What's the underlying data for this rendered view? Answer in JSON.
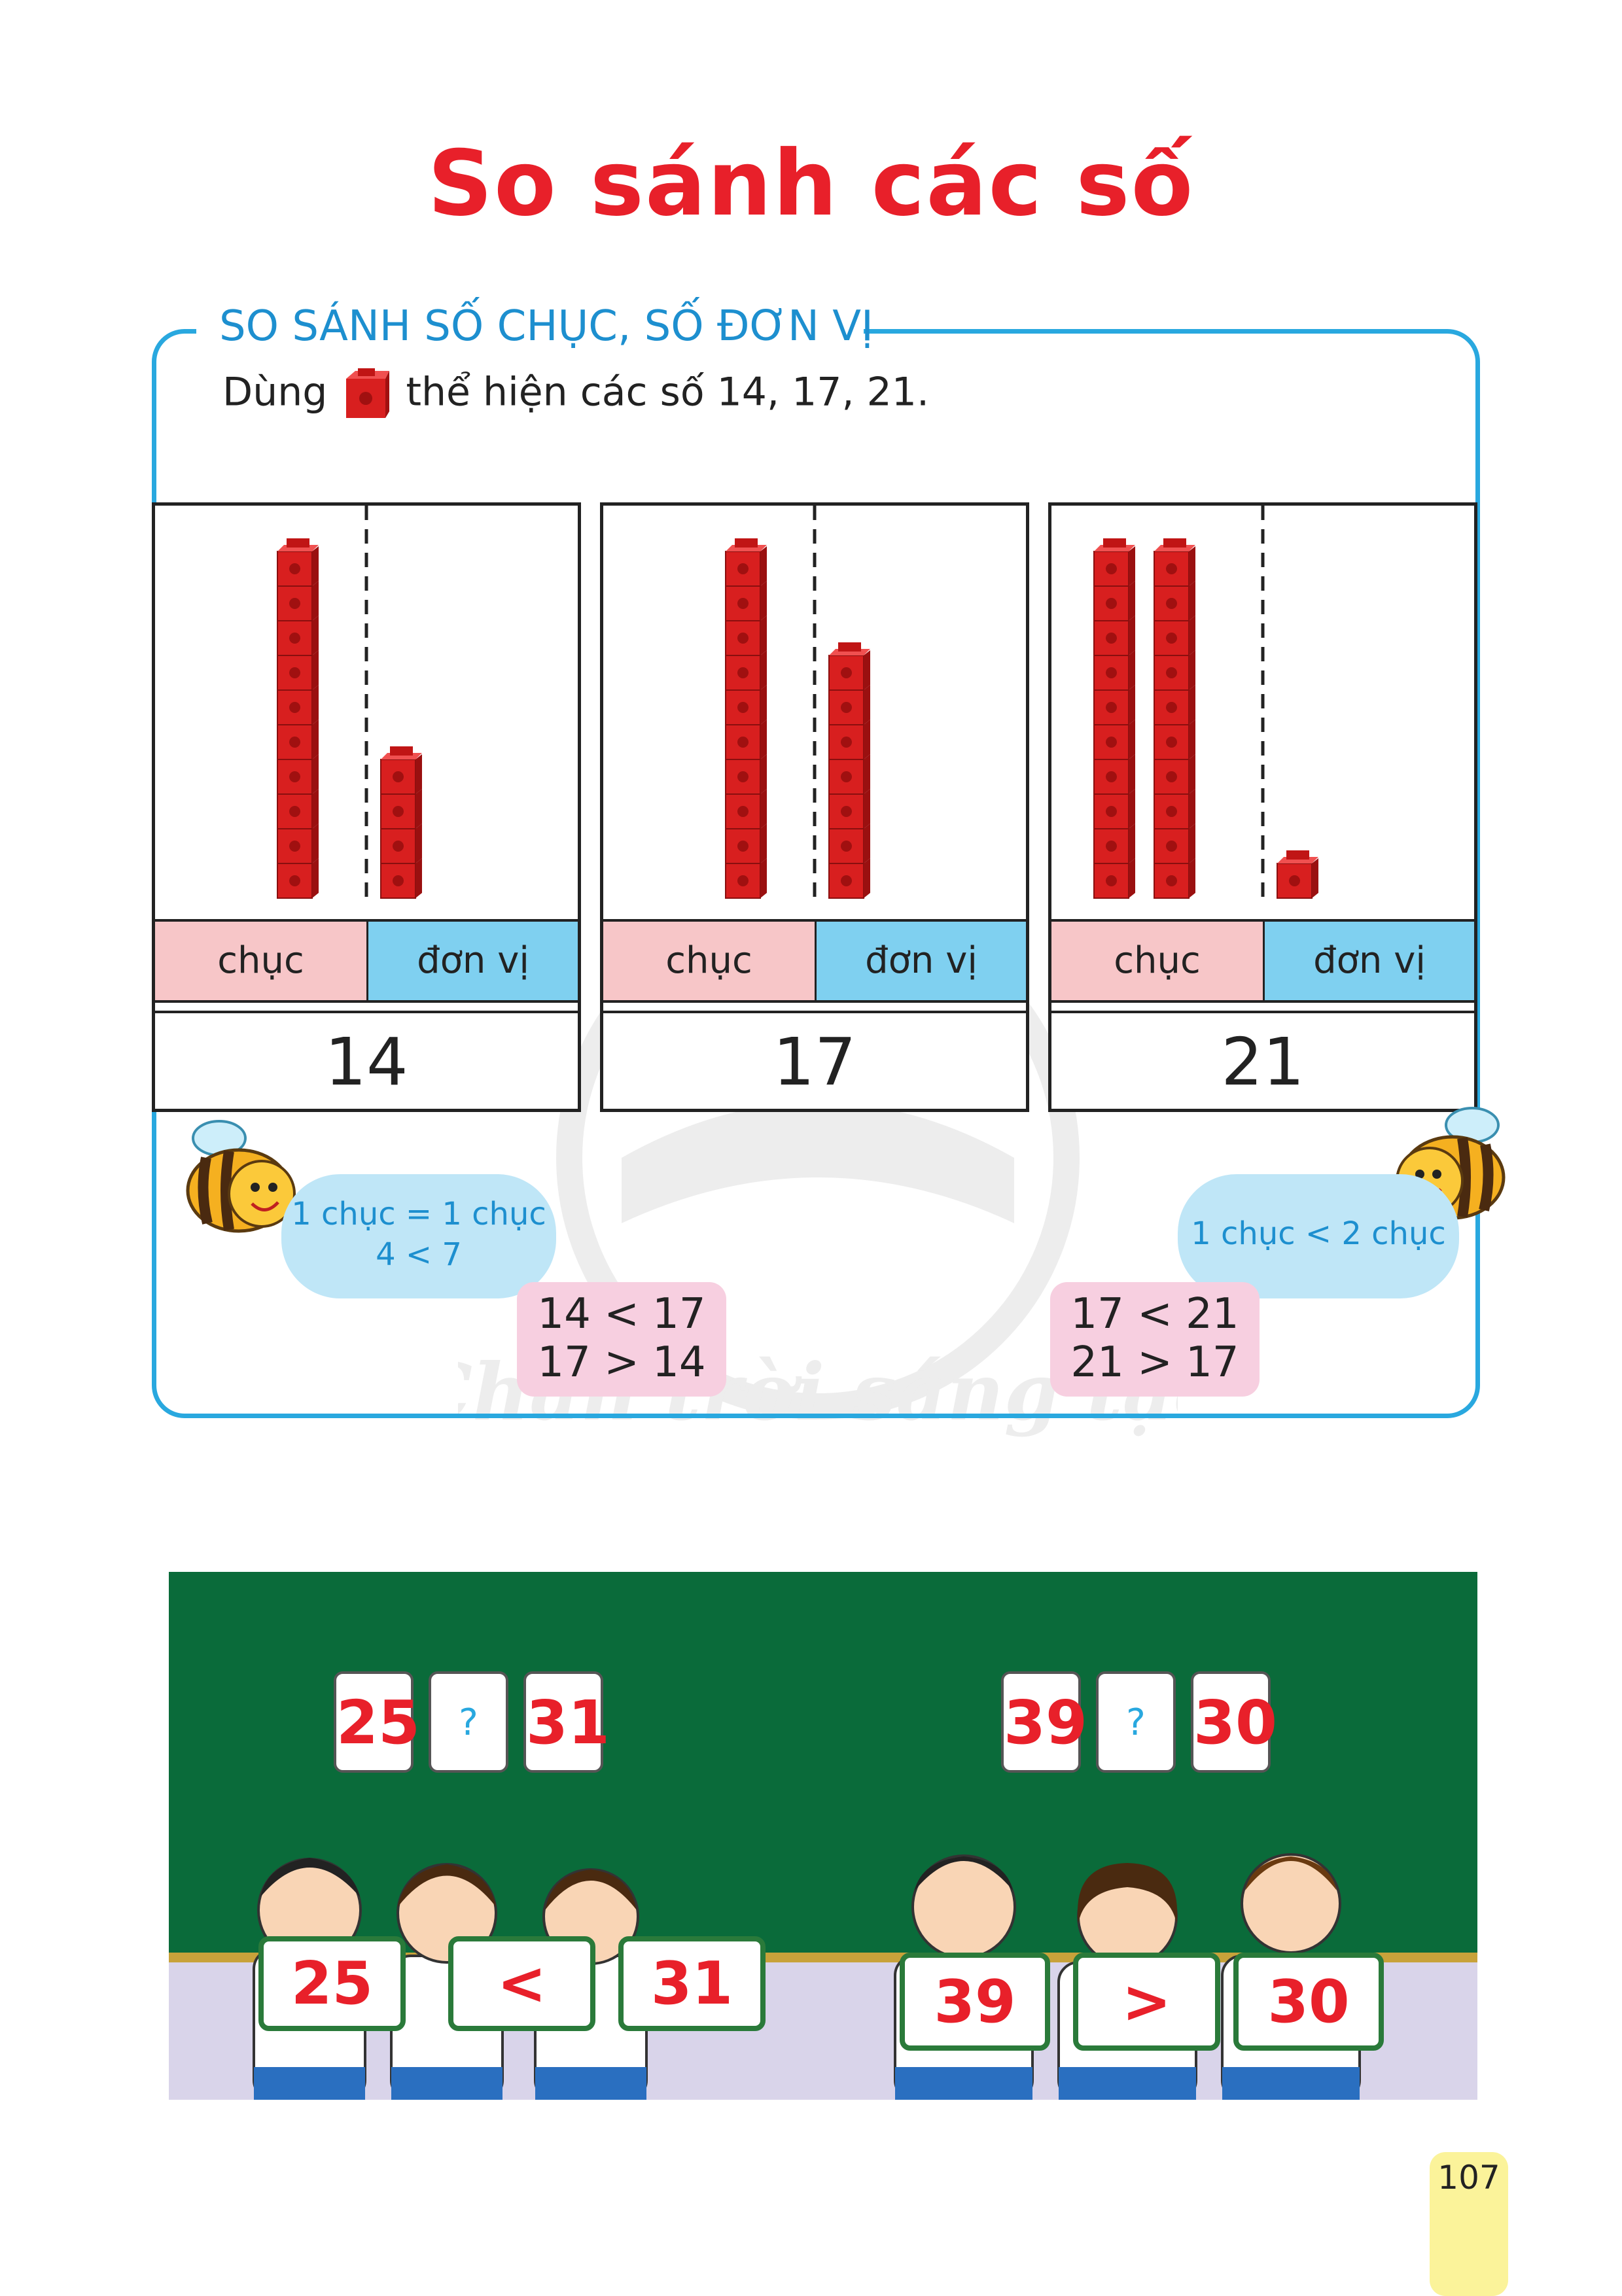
{
  "title": "So sánh các số",
  "section": {
    "heading": "SO SÁNH SỐ CHỤC, SỐ ĐƠN VỊ",
    "instruction_before": "Dùng",
    "instruction_after": "thể hiện các số 14, 17, 21."
  },
  "panels": [
    {
      "tens": 1,
      "ones": 4,
      "label_tens": "chục",
      "label_ones": "đơn vị",
      "number": "14"
    },
    {
      "tens": 1,
      "ones": 7,
      "label_tens": "chục",
      "label_ones": "đơn vị",
      "number": "17"
    },
    {
      "tens": 2,
      "ones": 1,
      "label_tens": "chục",
      "label_ones": "đơn vị",
      "number": "21"
    }
  ],
  "notes": {
    "left_cloud": [
      "1 chục = 1 chục",
      "4 < 7"
    ],
    "right_cloud": [
      "1 chục < 2 chục"
    ],
    "left_compare": [
      "14 < 17",
      "17 > 14"
    ],
    "right_compare": [
      "17 < 21",
      "21 > 17"
    ]
  },
  "board": {
    "left_cards": [
      "25",
      "?",
      "31"
    ],
    "right_cards": [
      "39",
      "?",
      "30"
    ],
    "left_signs": [
      "25",
      "<",
      "31"
    ],
    "right_signs": [
      "39",
      ">",
      "30"
    ]
  },
  "watermark_text": "Chân trời sáng tạo",
  "page_number": "107",
  "colors": {
    "title": "#e8202a",
    "accent_blue": "#29a8df",
    "cube_red": "#e02020",
    "board_green": "#0a6b3a"
  }
}
